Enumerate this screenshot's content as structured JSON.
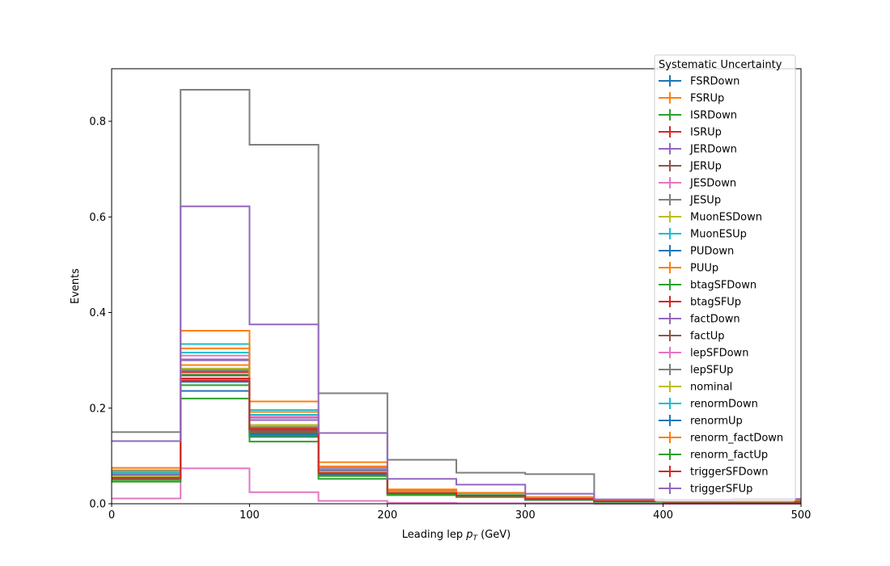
{
  "chart_data": {
    "type": "step-histogram",
    "xlabel": "Leading lep",
    "xlabel_math": "p",
    "xlabel_sub": "T",
    "xlabel_unit": "(GeV)",
    "ylabel": "Events",
    "xlim": [
      0,
      500
    ],
    "ylim": [
      0,
      0.91
    ],
    "xticks": [
      0,
      100,
      200,
      300,
      400,
      500
    ],
    "yticks": [
      0.0,
      0.2,
      0.4,
      0.6,
      0.8
    ],
    "ytick_labels": [
      "0.0",
      "0.2",
      "0.4",
      "0.6",
      "0.8"
    ],
    "bin_edges": [
      0,
      50,
      100,
      150,
      200,
      250,
      300,
      350,
      400,
      450,
      500
    ],
    "legend_title": "Systematic Uncertainty",
    "legend_position": "upper-right",
    "series": [
      {
        "name": "FSRDown",
        "color": "#1f77b4",
        "values": [
          0.05,
          0.236,
          0.14,
          0.061,
          0.02,
          0.015,
          0.008,
          0.004,
          0.003,
          0.003
        ]
      },
      {
        "name": "FSRUp",
        "color": "#ff7f0e",
        "values": [
          0.06,
          0.29,
          0.16,
          0.066,
          0.024,
          0.019,
          0.011,
          0.006,
          0.004,
          0.004
        ]
      },
      {
        "name": "ISRDown",
        "color": "#2ca02c",
        "values": [
          0.055,
          0.27,
          0.15,
          0.063,
          0.022,
          0.017,
          0.01,
          0.005,
          0.004,
          0.004
        ]
      },
      {
        "name": "ISRUp",
        "color": "#d62728",
        "values": [
          0.057,
          0.275,
          0.155,
          0.064,
          0.023,
          0.018,
          0.01,
          0.005,
          0.004,
          0.004
        ]
      },
      {
        "name": "JERDown",
        "color": "#9467bd",
        "values": [
          0.062,
          0.3,
          0.175,
          0.07,
          0.026,
          0.02,
          0.012,
          0.006,
          0.005,
          0.005
        ]
      },
      {
        "name": "JERUp",
        "color": "#8c564b",
        "values": [
          0.054,
          0.262,
          0.148,
          0.062,
          0.021,
          0.016,
          0.009,
          0.005,
          0.004,
          0.004
        ]
      },
      {
        "name": "JESDown",
        "color": "#e377c2",
        "values": [
          0.011,
          0.074,
          0.024,
          0.006,
          0.002,
          0.001,
          0.001,
          0.0,
          0.0,
          0.0
        ]
      },
      {
        "name": "JESUp",
        "color": "#7f7f7f",
        "values": [
          0.15,
          0.866,
          0.751,
          0.231,
          0.092,
          0.065,
          0.062,
          0.007,
          0.008,
          0.007
        ]
      },
      {
        "name": "MuonESDown",
        "color": "#bcbd22",
        "values": [
          0.058,
          0.28,
          0.163,
          0.067,
          0.023,
          0.018,
          0.01,
          0.005,
          0.004,
          0.004
        ]
      },
      {
        "name": "MuonESUp",
        "color": "#17becf",
        "values": [
          0.07,
          0.334,
          0.196,
          0.078,
          0.028,
          0.021,
          0.013,
          0.006,
          0.005,
          0.005
        ]
      },
      {
        "name": "PUDown",
        "color": "#1f77b4",
        "values": [
          0.059,
          0.282,
          0.165,
          0.068,
          0.024,
          0.018,
          0.011,
          0.005,
          0.004,
          0.004
        ]
      },
      {
        "name": "PUUp",
        "color": "#ff7f0e",
        "values": [
          0.075,
          0.362,
          0.214,
          0.087,
          0.03,
          0.023,
          0.014,
          0.007,
          0.006,
          0.006
        ]
      },
      {
        "name": "btagSFDown",
        "color": "#2ca02c",
        "values": [
          0.046,
          0.22,
          0.13,
          0.052,
          0.018,
          0.014,
          0.008,
          0.004,
          0.003,
          0.003
        ]
      },
      {
        "name": "btagSFUp",
        "color": "#d62728",
        "values": [
          0.053,
          0.258,
          0.158,
          0.065,
          0.022,
          0.017,
          0.01,
          0.005,
          0.004,
          0.004
        ]
      },
      {
        "name": "factDown",
        "color": "#9467bd",
        "values": [
          0.063,
          0.302,
          0.18,
          0.073,
          0.026,
          0.02,
          0.012,
          0.006,
          0.005,
          0.005
        ]
      },
      {
        "name": "factUp",
        "color": "#8c564b",
        "values": [
          0.056,
          0.268,
          0.152,
          0.063,
          0.022,
          0.017,
          0.01,
          0.005,
          0.004,
          0.004
        ]
      },
      {
        "name": "lepSFDown",
        "color": "#e377c2",
        "values": [
          0.065,
          0.31,
          0.182,
          0.074,
          0.027,
          0.021,
          0.012,
          0.006,
          0.005,
          0.005
        ]
      },
      {
        "name": "lepSFUp",
        "color": "#7f7f7f",
        "values": [
          0.057,
          0.278,
          0.16,
          0.066,
          0.023,
          0.018,
          0.01,
          0.005,
          0.004,
          0.004
        ]
      },
      {
        "name": "nominal",
        "color": "#bcbd22",
        "values": [
          0.058,
          0.283,
          0.165,
          0.067,
          0.023,
          0.018,
          0.01,
          0.005,
          0.004,
          0.004
        ]
      },
      {
        "name": "renormDown",
        "color": "#17becf",
        "values": [
          0.066,
          0.316,
          0.186,
          0.076,
          0.027,
          0.021,
          0.013,
          0.006,
          0.005,
          0.005
        ]
      },
      {
        "name": "renormUp",
        "color": "#1f77b4",
        "values": [
          0.052,
          0.255,
          0.145,
          0.06,
          0.021,
          0.016,
          0.009,
          0.005,
          0.004,
          0.004
        ]
      },
      {
        "name": "renorm_factDown",
        "color": "#ff7f0e",
        "values": [
          0.068,
          0.325,
          0.192,
          0.078,
          0.028,
          0.022,
          0.013,
          0.006,
          0.005,
          0.005
        ]
      },
      {
        "name": "renorm_factUp",
        "color": "#2ca02c",
        "values": [
          0.05,
          0.248,
          0.142,
          0.058,
          0.02,
          0.016,
          0.009,
          0.004,
          0.003,
          0.003
        ]
      },
      {
        "name": "triggerSFDown",
        "color": "#d62728",
        "values": [
          0.054,
          0.262,
          0.156,
          0.064,
          0.022,
          0.017,
          0.01,
          0.005,
          0.004,
          0.004
        ]
      },
      {
        "name": "triggerSFUp",
        "color": "#9467bd",
        "values": [
          0.131,
          0.622,
          0.375,
          0.148,
          0.052,
          0.04,
          0.021,
          0.009,
          0.008,
          0.01
        ]
      }
    ]
  }
}
